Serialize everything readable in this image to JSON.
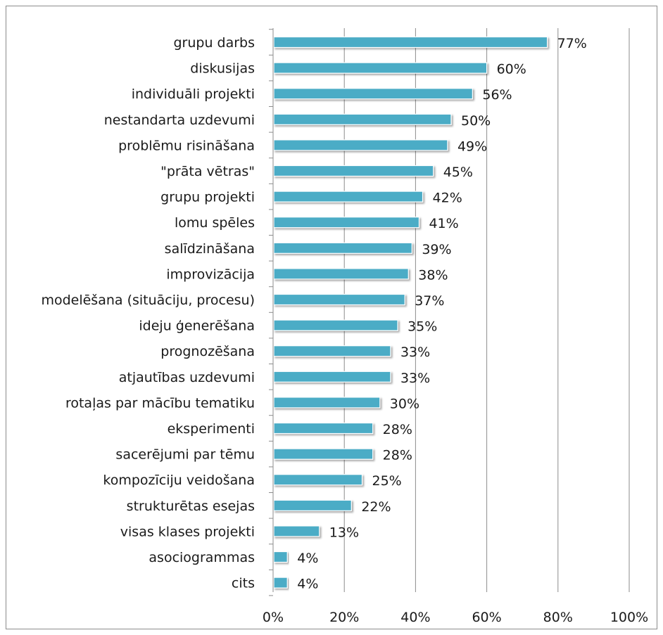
{
  "chart_data": {
    "type": "bar",
    "orientation": "horizontal",
    "categories": [
      "grupu darbs",
      "diskusijas",
      "individuāli projekti",
      "nestandarta uzdevumi",
      "problēmu risināšana",
      "\"prāta vētras\"",
      "grupu projekti",
      "lomu spēles",
      "salīdzināšana",
      "improvizācija",
      "modelēšana (situāciju, procesu)",
      "ideju ģenerēšana",
      "prognozēšana",
      "atjautības uzdevumi",
      "rotaļas par mācību tematiku",
      "eksperimenti",
      "sacerējumi par tēmu",
      "kompozīciju veidošana",
      "strukturētas esejas",
      "visas klases projekti",
      "asociogrammas",
      "cits"
    ],
    "values": [
      77,
      60,
      56,
      50,
      49,
      45,
      42,
      41,
      39,
      38,
      37,
      35,
      33,
      33,
      30,
      28,
      28,
      25,
      22,
      13,
      4,
      4
    ],
    "value_labels": [
      "77%",
      "60%",
      "56%",
      "50%",
      "49%",
      "45%",
      "42%",
      "41%",
      "39%",
      "38%",
      "37%",
      "35%",
      "33%",
      "33%",
      "30%",
      "28%",
      "28%",
      "25%",
      "22%",
      "13%",
      "4%",
      "4%"
    ],
    "xticks": [
      "0%",
      "20%",
      "40%",
      "60%",
      "80%",
      "100%"
    ],
    "xlim": [
      0,
      100
    ],
    "title": "",
    "xlabel": "",
    "ylabel": "",
    "grid": "vertical",
    "legend": "none",
    "bar_color": "#4bacc6",
    "grid_color": "#8c8c8c"
  }
}
